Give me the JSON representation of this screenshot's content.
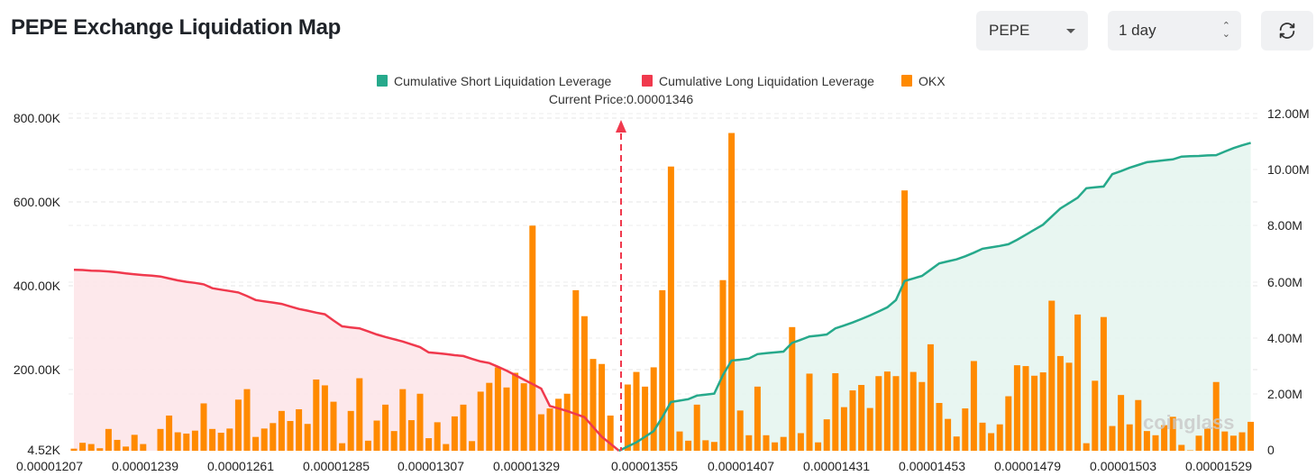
{
  "header": {
    "title": "PEPE Exchange Liquidation Map",
    "coin_select": "PEPE",
    "range_select": "1 day",
    "refresh_icon": "refresh-icon"
  },
  "legend": [
    {
      "label": "Cumulative Short Liquidation Leverage",
      "color": "#26a98b"
    },
    {
      "label": "Cumulative Long Liquidation Leverage",
      "color": "#f0394d"
    },
    {
      "label": "OKX",
      "color": "#ff8a00"
    }
  ],
  "current_price_label": "Current Price:0.00001346",
  "watermark": "coinglass",
  "chart_data": {
    "type": "bar",
    "legend_position": "top-center",
    "grid": true,
    "x_tick_labels": [
      "0.00001207",
      "0.00001239",
      "0.00001261",
      "0.00001285",
      "0.00001307",
      "0.00001329",
      "0.00001355",
      "0.00001407",
      "0.00001431",
      "0.00001453",
      "0.00001479",
      "0.00001503",
      "0.00001529"
    ],
    "y_left": {
      "ticks": [
        "4.52K",
        "200.00K",
        "400.00K",
        "600.00K",
        "800.00K"
      ],
      "range": [
        4520,
        800000
      ]
    },
    "y_right": {
      "ticks": [
        "0",
        "2.00M",
        "4.00M",
        "6.00M",
        "8.00M",
        "10.00M",
        "12.00M"
      ],
      "range": [
        0,
        12000000
      ]
    },
    "current_price": 1.346e-05,
    "series": [
      {
        "name": "OKX",
        "type": "bar",
        "axis": "left",
        "unit": "K",
        "values": [
          5,
          19,
          16,
          6,
          52,
          26,
          10,
          38,
          16,
          0,
          52,
          84,
          44,
          41,
          48,
          113,
          52,
          43,
          53,
          122,
          147,
          33,
          53,
          66,
          95,
          71,
          99,
          64,
          170,
          156,
          117,
          18,
          95,
          173,
          24,
          72,
          110,
          47,
          147,
          73,
          136,
          30,
          68,
          16,
          82,
          110,
          23,
          141,
          162,
          199,
          151,
          186,
          161,
          537,
          87,
          101,
          124,
          136,
          383,
          321,
          219,
          207,
          84,
          0,
          158,
          188,
          153,
          199,
          383,
          678,
          46,
          24,
          110,
          25,
          21,
          407,
          758,
          96,
          37,
          153,
          37,
          20,
          33,
          295,
          42,
          184,
          20,
          75,
          185,
          104,
          144,
          157,
          102,
          178,
          189,
          178,
          621,
          188,
          164,
          254,
          114,
          76,
          34,
          101,
          214,
          67,
          42,
          63,
          130,
          204,
          202,
          179,
          187,
          358,
          226,
          210,
          325,
          18,
          167,
          319,
          59,
          133,
          63,
          121,
          47,
          37,
          61,
          81,
          14,
          1,
          36,
          53,
          164,
          46,
          36,
          44,
          69
        ]
      },
      {
        "name": "Cumulative Long Liquidation Leverage",
        "type": "area",
        "axis": "right",
        "unit": "M",
        "values": [
          6.46,
          6.45,
          6.43,
          6.42,
          6.4,
          6.37,
          6.33,
          6.3,
          6.27,
          6.25,
          6.22,
          6.15,
          6.08,
          6.03,
          5.99,
          5.94,
          5.8,
          5.75,
          5.7,
          5.65,
          5.52,
          5.38,
          5.33,
          5.29,
          5.24,
          5.15,
          5.06,
          5.0,
          4.93,
          4.87,
          4.65,
          4.44,
          4.4,
          4.37,
          4.26,
          4.15,
          4.06,
          3.98,
          3.9,
          3.8,
          3.7,
          3.51,
          3.48,
          3.45,
          3.41,
          3.38,
          3.28,
          3.19,
          3.13,
          3.0,
          2.86,
          2.7,
          2.54,
          2.38,
          2.22,
          1.6,
          1.51,
          1.42,
          1.31,
          1.2,
          0.85,
          0.5,
          0.25,
          0
        ]
      },
      {
        "name": "Cumulative Short Liquidation Leverage",
        "type": "area",
        "axis": "right",
        "unit": "M",
        "start_index": 63,
        "values": [
          0,
          0.15,
          0.3,
          0.5,
          0.7,
          1.2,
          1.74,
          1.79,
          1.84,
          1.97,
          2.0,
          2.04,
          2.7,
          3.22,
          3.25,
          3.29,
          3.45,
          3.48,
          3.51,
          3.54,
          3.85,
          3.96,
          4.08,
          4.11,
          4.15,
          4.37,
          4.47,
          4.58,
          4.7,
          4.83,
          4.97,
          5.12,
          5.38,
          6.06,
          6.15,
          6.24,
          6.46,
          6.69,
          6.76,
          6.83,
          6.94,
          7.07,
          7.21,
          7.26,
          7.31,
          7.37,
          7.53,
          7.71,
          7.89,
          8.07,
          8.36,
          8.65,
          8.84,
          9.03,
          9.37,
          9.4,
          9.43,
          9.87,
          9.98,
          10.1,
          10.2,
          10.3,
          10.33,
          10.37,
          10.4,
          10.5,
          10.51,
          10.52,
          10.54,
          10.55,
          10.68,
          10.8,
          10.9,
          10.99
        ]
      }
    ]
  }
}
